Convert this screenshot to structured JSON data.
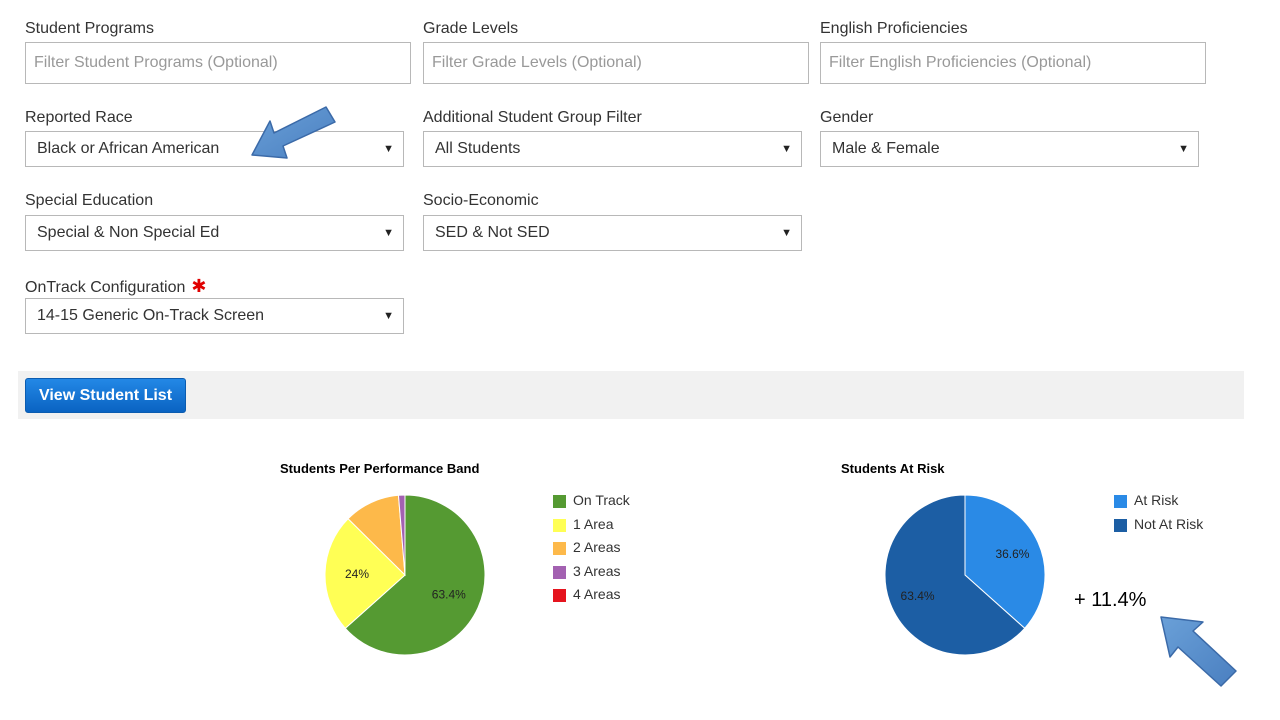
{
  "filters": {
    "student_programs": {
      "label": "Student Programs",
      "placeholder": "Filter Student Programs (Optional)"
    },
    "grade_levels": {
      "label": "Grade Levels",
      "placeholder": "Filter Grade Levels (Optional)"
    },
    "english_proficiencies": {
      "label": "English Proficiencies",
      "placeholder": "Filter English Proficiencies (Optional)"
    },
    "reported_race": {
      "label": "Reported Race",
      "value": "Black or African American"
    },
    "additional_group": {
      "label": "Additional Student Group Filter",
      "value": "All Students"
    },
    "gender": {
      "label": "Gender",
      "value": "Male & Female"
    },
    "special_education": {
      "label": "Special Education",
      "value": "Special & Non Special Ed"
    },
    "socio_economic": {
      "label": "Socio-Economic",
      "value": "SED & Not SED"
    },
    "ontrack_config": {
      "label": "OnTrack Configuration",
      "required_mark": "✱",
      "value": "14-15 Generic On-Track Screen"
    }
  },
  "actions": {
    "view_student_list": "View Student List"
  },
  "annotation_text": "+ 11.4%",
  "chart_data": [
    {
      "type": "pie",
      "title": "Students Per Performance Band",
      "legend": "right",
      "slices": [
        {
          "label": "On Track",
          "value": 63.4,
          "color": "#559a32",
          "data_label": "63.4%"
        },
        {
          "label": "1 Area",
          "value": 24.0,
          "color": "#ffff55",
          "data_label": "24%"
        },
        {
          "label": "2 Areas",
          "value": 11.3,
          "color": "#fdb94a",
          "data_label": ""
        },
        {
          "label": "3 Areas",
          "value": 1.3,
          "color": "#a361b1",
          "data_label": ""
        },
        {
          "label": "4 Areas",
          "value": 0,
          "color": "#e5141e",
          "data_label": ""
        }
      ]
    },
    {
      "type": "pie",
      "title": "Students At Risk",
      "legend": "right",
      "slices": [
        {
          "label": "At Risk",
          "value": 36.6,
          "color": "#2a8ae6",
          "data_label": "36.6%"
        },
        {
          "label": "Not At Risk",
          "value": 63.4,
          "color": "#1c5ea4",
          "data_label": "63.4%"
        }
      ]
    }
  ]
}
